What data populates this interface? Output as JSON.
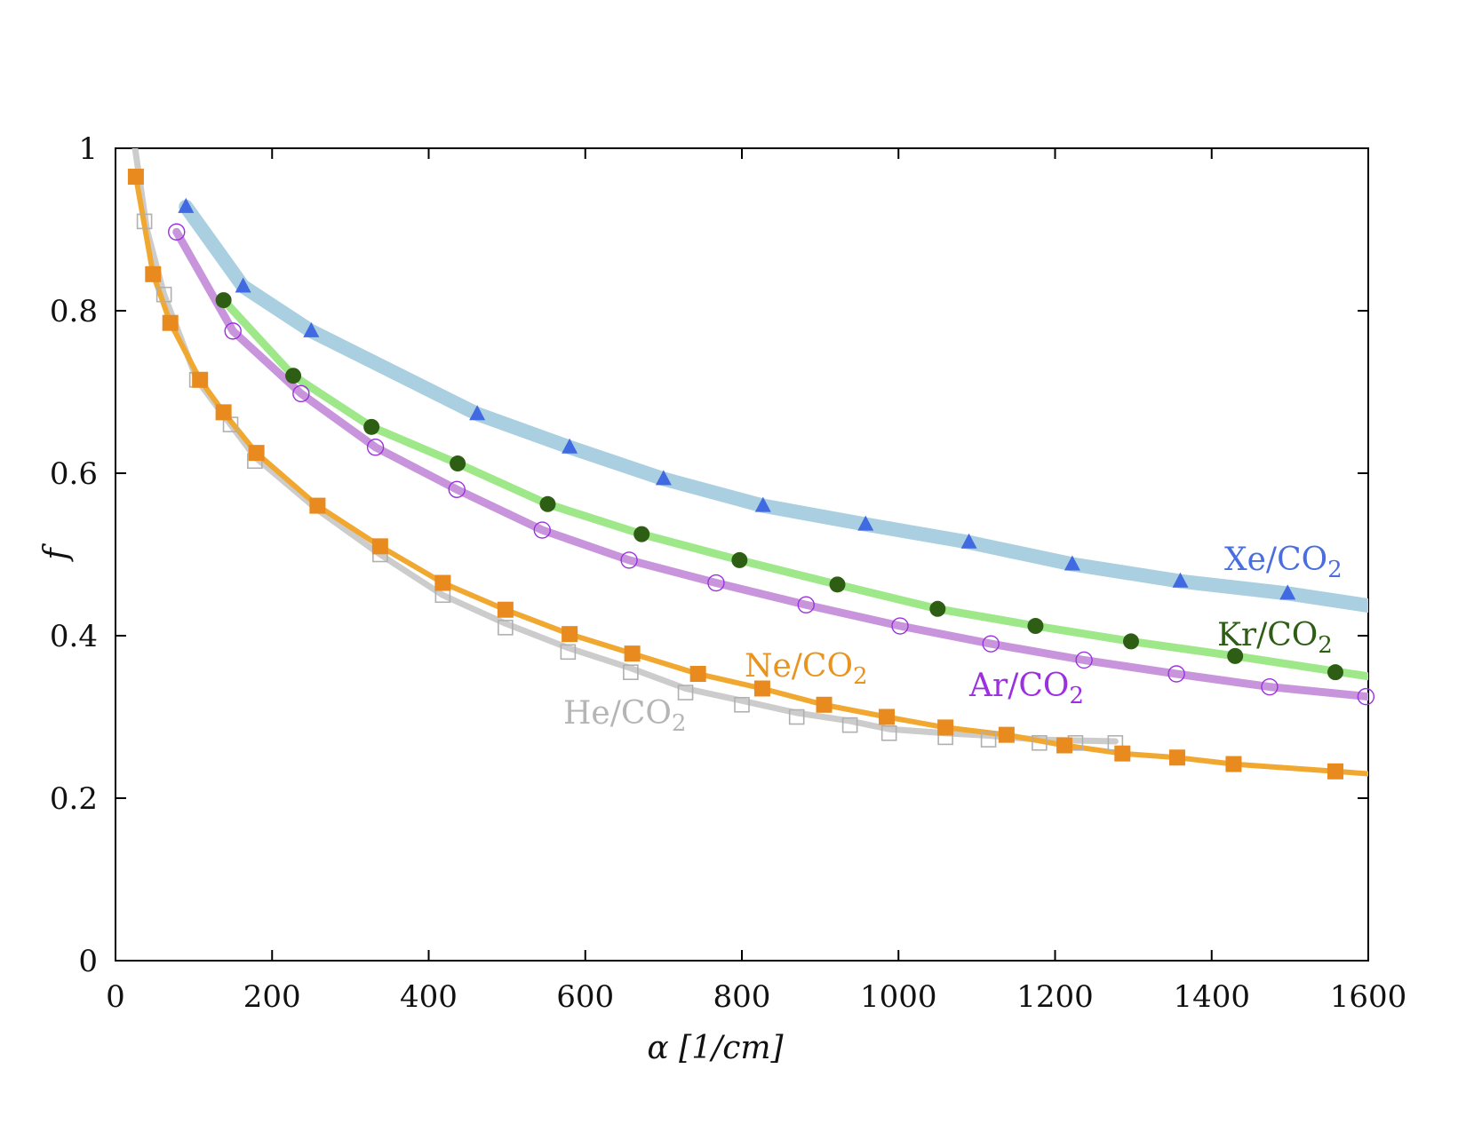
{
  "chart_data": {
    "type": "line",
    "xlabel": "α [1/cm]",
    "ylabel": "f",
    "xlim": [
      0,
      1600
    ],
    "ylim": [
      0,
      1
    ],
    "x_ticks": [
      "0",
      "200",
      "400",
      "600",
      "800",
      "1000",
      "1200",
      "1400",
      "1600"
    ],
    "y_ticks": [
      "0",
      "0.2",
      "0.4",
      "0.6",
      "0.8",
      "1"
    ],
    "grid": false,
    "series": [
      {
        "name": "He/CO2",
        "label_base": "He/CO",
        "label_sub": "2",
        "line_color": "#cccccc",
        "marker_color": "#b0b0b0",
        "marker": "open-square",
        "points": [
          [
            37,
            0.91
          ],
          [
            62,
            0.82
          ],
          [
            104,
            0.715
          ],
          [
            147,
            0.66
          ],
          [
            178,
            0.615
          ],
          [
            258,
            0.56
          ],
          [
            338,
            0.5
          ],
          [
            418,
            0.45
          ],
          [
            498,
            0.41
          ],
          [
            578,
            0.38
          ],
          [
            658,
            0.355
          ],
          [
            728,
            0.33
          ],
          [
            800,
            0.315
          ],
          [
            870,
            0.3
          ],
          [
            938,
            0.29
          ],
          [
            988,
            0.28
          ],
          [
            1060,
            0.275
          ],
          [
            1115,
            0.272
          ],
          [
            1180,
            0.268
          ],
          [
            1226,
            0.268
          ],
          [
            1277,
            0.268
          ]
        ],
        "curve": [
          [
            25,
            1.0
          ],
          [
            40,
            0.9
          ],
          [
            62,
            0.82
          ],
          [
            104,
            0.715
          ],
          [
            147,
            0.66
          ],
          [
            178,
            0.62
          ],
          [
            258,
            0.555
          ],
          [
            338,
            0.5
          ],
          [
            418,
            0.45
          ],
          [
            498,
            0.415
          ],
          [
            578,
            0.385
          ],
          [
            658,
            0.36
          ],
          [
            728,
            0.335
          ],
          [
            800,
            0.32
          ],
          [
            870,
            0.305
          ],
          [
            938,
            0.295
          ],
          [
            988,
            0.285
          ],
          [
            1060,
            0.28
          ],
          [
            1115,
            0.277
          ],
          [
            1180,
            0.272
          ],
          [
            1277,
            0.27
          ]
        ]
      },
      {
        "name": "Ne/CO2",
        "label_base": "Ne/CO",
        "label_sub": "2",
        "line_color": "#f0a830",
        "marker_color": "#e88a1e",
        "marker": "filled-square",
        "points": [
          [
            26,
            0.965
          ],
          [
            48,
            0.845
          ],
          [
            70,
            0.785
          ],
          [
            108,
            0.715
          ],
          [
            138,
            0.675
          ],
          [
            180,
            0.625
          ],
          [
            258,
            0.56
          ],
          [
            338,
            0.51
          ],
          [
            418,
            0.465
          ],
          [
            498,
            0.432
          ],
          [
            580,
            0.402
          ],
          [
            660,
            0.378
          ],
          [
            744,
            0.353
          ],
          [
            826,
            0.335
          ],
          [
            905,
            0.315
          ],
          [
            985,
            0.3
          ],
          [
            1060,
            0.287
          ],
          [
            1138,
            0.278
          ],
          [
            1212,
            0.265
          ],
          [
            1286,
            0.255
          ],
          [
            1356,
            0.25
          ],
          [
            1428,
            0.242
          ],
          [
            1558,
            0.233
          ]
        ],
        "curve": [
          [
            26,
            0.965
          ],
          [
            48,
            0.845
          ],
          [
            70,
            0.785
          ],
          [
            108,
            0.715
          ],
          [
            138,
            0.675
          ],
          [
            180,
            0.625
          ],
          [
            258,
            0.56
          ],
          [
            338,
            0.51
          ],
          [
            418,
            0.465
          ],
          [
            498,
            0.432
          ],
          [
            580,
            0.402
          ],
          [
            660,
            0.378
          ],
          [
            744,
            0.353
          ],
          [
            826,
            0.335
          ],
          [
            905,
            0.315
          ],
          [
            985,
            0.3
          ],
          [
            1060,
            0.287
          ],
          [
            1138,
            0.278
          ],
          [
            1212,
            0.265
          ],
          [
            1286,
            0.255
          ],
          [
            1356,
            0.25
          ],
          [
            1428,
            0.242
          ],
          [
            1558,
            0.233
          ],
          [
            1600,
            0.23
          ]
        ]
      },
      {
        "name": "Ar/CO2",
        "label_base": "Ar/CO",
        "label_sub": "2",
        "line_color": "#c895dc",
        "marker_color": "#9a30e0",
        "marker": "open-circle",
        "points": [
          [
            78,
            0.897
          ],
          [
            150,
            0.775
          ],
          [
            237,
            0.698
          ],
          [
            332,
            0.632
          ],
          [
            436,
            0.58
          ],
          [
            545,
            0.53
          ],
          [
            656,
            0.493
          ],
          [
            767,
            0.465
          ],
          [
            882,
            0.438
          ],
          [
            1002,
            0.412
          ],
          [
            1118,
            0.39
          ],
          [
            1237,
            0.37
          ],
          [
            1355,
            0.353
          ],
          [
            1474,
            0.337
          ],
          [
            1597,
            0.325
          ]
        ],
        "curve": [
          [
            78,
            0.897
          ],
          [
            150,
            0.775
          ],
          [
            237,
            0.698
          ],
          [
            332,
            0.632
          ],
          [
            436,
            0.58
          ],
          [
            545,
            0.53
          ],
          [
            656,
            0.493
          ],
          [
            767,
            0.465
          ],
          [
            882,
            0.438
          ],
          [
            1002,
            0.412
          ],
          [
            1118,
            0.39
          ],
          [
            1237,
            0.37
          ],
          [
            1355,
            0.353
          ],
          [
            1474,
            0.337
          ],
          [
            1600,
            0.325
          ]
        ]
      },
      {
        "name": "Kr/CO2",
        "label_base": "Kr/CO",
        "label_sub": "2",
        "line_color": "#9ee88a",
        "marker_color": "#2e5e14",
        "marker": "filled-circle",
        "points": [
          [
            138,
            0.813
          ],
          [
            227,
            0.72
          ],
          [
            327,
            0.657
          ],
          [
            437,
            0.612
          ],
          [
            552,
            0.562
          ],
          [
            672,
            0.525
          ],
          [
            797,
            0.493
          ],
          [
            922,
            0.463
          ],
          [
            1050,
            0.433
          ],
          [
            1175,
            0.412
          ],
          [
            1297,
            0.393
          ],
          [
            1430,
            0.375
          ],
          [
            1558,
            0.355
          ]
        ],
        "curve": [
          [
            138,
            0.813
          ],
          [
            227,
            0.72
          ],
          [
            327,
            0.657
          ],
          [
            437,
            0.612
          ],
          [
            552,
            0.562
          ],
          [
            672,
            0.525
          ],
          [
            797,
            0.493
          ],
          [
            922,
            0.463
          ],
          [
            1050,
            0.433
          ],
          [
            1175,
            0.412
          ],
          [
            1297,
            0.393
          ],
          [
            1430,
            0.375
          ],
          [
            1600,
            0.35
          ]
        ]
      },
      {
        "name": "Xe/CO2",
        "label_base": "Xe/CO",
        "label_sub": "2",
        "line_color": "#a9cfe0",
        "marker_color": "#4169e1",
        "marker": "filled-triangle",
        "points": [
          [
            90,
            0.928
          ],
          [
            163,
            0.83
          ],
          [
            250,
            0.775
          ],
          [
            462,
            0.673
          ],
          [
            580,
            0.632
          ],
          [
            700,
            0.593
          ],
          [
            827,
            0.56
          ],
          [
            958,
            0.537
          ],
          [
            1090,
            0.515
          ],
          [
            1222,
            0.488
          ],
          [
            1360,
            0.467
          ],
          [
            1497,
            0.452
          ]
        ],
        "curve": [
          [
            90,
            0.928
          ],
          [
            163,
            0.83
          ],
          [
            250,
            0.775
          ],
          [
            462,
            0.673
          ],
          [
            580,
            0.632
          ],
          [
            700,
            0.593
          ],
          [
            827,
            0.56
          ],
          [
            958,
            0.537
          ],
          [
            1090,
            0.515
          ],
          [
            1222,
            0.488
          ],
          [
            1360,
            0.467
          ],
          [
            1497,
            0.452
          ],
          [
            1600,
            0.437
          ]
        ]
      }
    ]
  }
}
